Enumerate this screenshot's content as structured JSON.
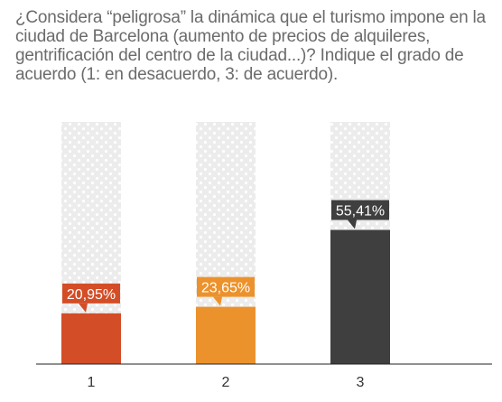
{
  "chart_data": {
    "type": "bar",
    "title": "¿Considera “peligrosa” la dinámica que el turismo impone en la ciudad de Barcelona (aumento de precios de alquileres, gentrificación del centro de la ciudad...)? Indique el grado de acuerdo (1: en desacuerdo, 3: de acuerdo).",
    "categories": [
      "1",
      "2",
      "3"
    ],
    "values": [
      20.95,
      23.65,
      55.41
    ],
    "data_labels": [
      "20,95%",
      "23,65%",
      "55,41%"
    ],
    "ylim": [
      0,
      100
    ],
    "colors": [
      "#d34d27",
      "#ec922c",
      "#3f3f3f"
    ],
    "background_bar_color": "#ececec",
    "grid": false,
    "xlabel": "",
    "ylabel": ""
  }
}
